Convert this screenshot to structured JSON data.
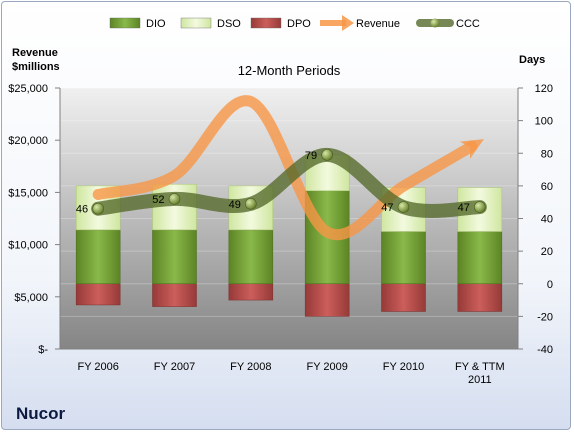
{
  "chart_data": {
    "type": "bar",
    "title": "12-Month Periods",
    "company": "Nucor",
    "left_axis_title": [
      "Revenue",
      "$millions"
    ],
    "right_axis_title": "Days",
    "categories": [
      "FY 2006",
      "FY 2007",
      "FY 2008",
      "FY 2009",
      "FY 2010",
      "FY & TTM|2011"
    ],
    "left_ticks": [
      "$-",
      "$5,000",
      "$10,000",
      "$15,000",
      "$20,000",
      "$25,000"
    ],
    "right_ticks": [
      "-40",
      "-20",
      "0",
      "20",
      "40",
      "60",
      "80",
      "100",
      "120"
    ],
    "right_ylim": [
      -40,
      120
    ],
    "left_ylim": [
      0,
      25000
    ],
    "legend": [
      {
        "name": "DIO",
        "swatch": "bar",
        "color": "#6e9a2e"
      },
      {
        "name": "DSO",
        "swatch": "bar",
        "color": "#e0f0b8"
      },
      {
        "name": "DPO",
        "swatch": "bar",
        "color": "#c0504d"
      },
      {
        "name": "Revenue",
        "swatch": "arrow",
        "color": "#f79646"
      },
      {
        "name": "CCC",
        "swatch": "dotline",
        "color": "#5a6e2c"
      }
    ],
    "legend_position": "top",
    "series": [
      {
        "name": "DIO",
        "axis": "right",
        "values": [
          33,
          33,
          33,
          57,
          32,
          32
        ]
      },
      {
        "name": "DSO",
        "axis": "right",
        "values": [
          27,
          28,
          27,
          22,
          27,
          27
        ]
      },
      {
        "name": "DPO",
        "axis": "right",
        "values": [
          -13,
          -14,
          -10,
          -20,
          -17,
          -17
        ]
      },
      {
        "name": "Revenue",
        "axis": "left",
        "values": [
          14800,
          16600,
          23700,
          11200,
          15600,
          19900
        ]
      },
      {
        "name": "CCC",
        "axis": "right",
        "values": [
          46,
          52,
          49,
          79,
          47,
          47
        ]
      }
    ],
    "ccc_labels": [
      "46",
      "52",
      "49",
      "79",
      "47",
      "47"
    ],
    "colors": {
      "dio": "#6e9a2e",
      "dso": "#e0f0b8",
      "dpo": "#c0504d",
      "revenue": "#f79646",
      "ccc": "#5a6e2c",
      "plot_top": "#eeeeee",
      "plot_bottom": "#8a8a8a"
    }
  }
}
